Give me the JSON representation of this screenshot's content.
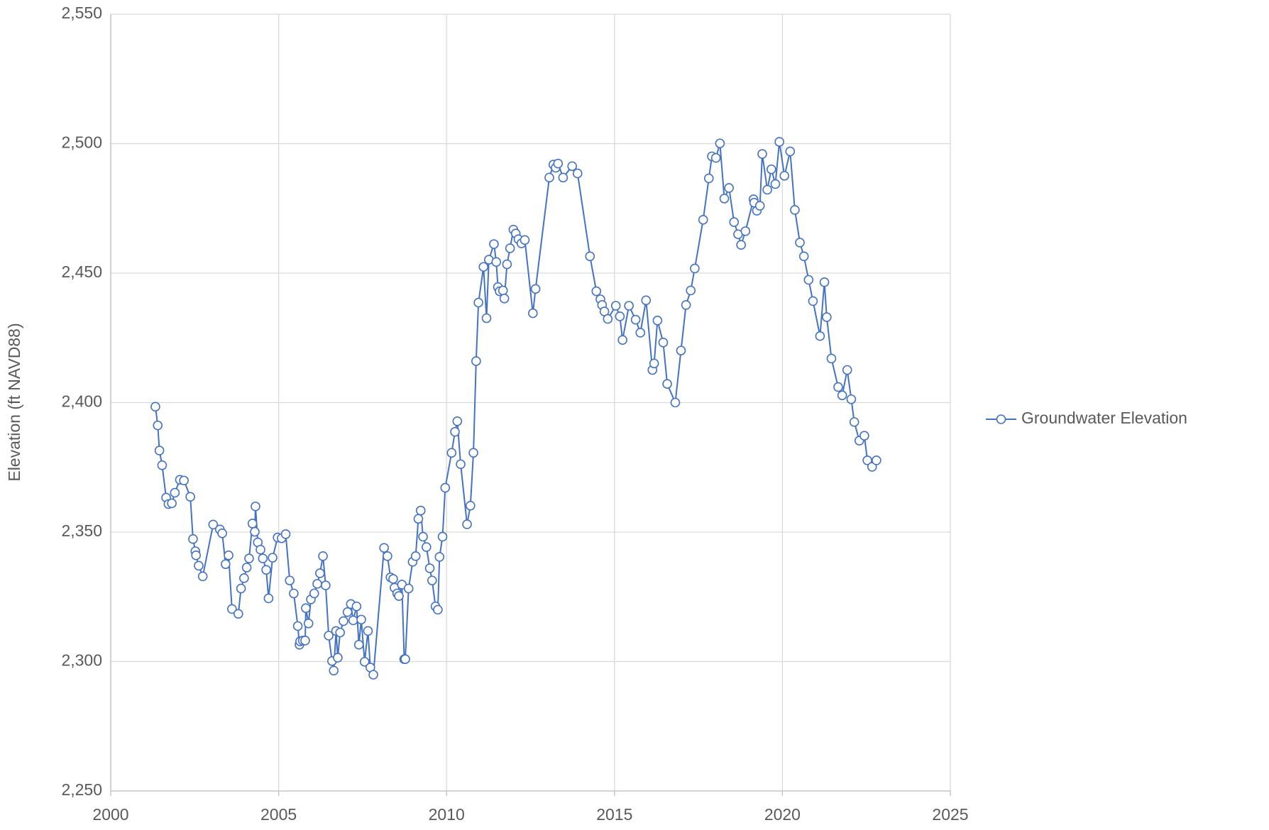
{
  "chart_data": {
    "type": "line",
    "y_label": "Elevation (ft NAVD88)",
    "x": [
      2001.33,
      2001.4,
      2001.45,
      2001.53,
      2001.65,
      2001.72,
      2001.82,
      2001.91,
      2002.06,
      2002.18,
      2002.37,
      2002.45,
      2002.52,
      2002.54,
      2002.62,
      2002.74,
      2003.05,
      2003.25,
      2003.32,
      2003.42,
      2003.51,
      2003.61,
      2003.8,
      2003.88,
      2003.97,
      2004.05,
      2004.12,
      2004.22,
      2004.29,
      2004.31,
      2004.38,
      2004.46,
      2004.53,
      2004.63,
      2004.7,
      2004.82,
      2004.97,
      2005.09,
      2005.21,
      2005.33,
      2005.45,
      2005.57,
      2005.62,
      2005.64,
      2005.72,
      2005.79,
      2005.81,
      2005.89,
      2005.96,
      2006.06,
      2006.15,
      2006.23,
      2006.32,
      2006.4,
      2006.49,
      2006.59,
      2006.64,
      2006.71,
      2006.76,
      2006.83,
      2006.93,
      2007.05,
      2007.15,
      2007.22,
      2007.32,
      2007.39,
      2007.46,
      2007.56,
      2007.66,
      2007.73,
      2007.82,
      2008.14,
      2008.24,
      2008.33,
      2008.41,
      2008.45,
      2008.53,
      2008.58,
      2008.67,
      2008.74,
      2008.77,
      2008.87,
      2008.99,
      2009.08,
      2009.16,
      2009.23,
      2009.3,
      2009.4,
      2009.5,
      2009.57,
      2009.67,
      2009.74,
      2009.79,
      2009.88,
      2009.96,
      2010.15,
      2010.25,
      2010.32,
      2010.42,
      2010.61,
      2010.71,
      2010.8,
      2010.88,
      2010.95,
      2011.1,
      2011.19,
      2011.26,
      2011.41,
      2011.48,
      2011.53,
      2011.58,
      2011.68,
      2011.72,
      2011.8,
      2011.89,
      2011.99,
      2012.06,
      2012.14,
      2012.23,
      2012.33,
      2012.57,
      2012.65,
      2013.06,
      2013.18,
      2013.25,
      2013.32,
      2013.47,
      2013.74,
      2013.9,
      2014.27,
      2014.46,
      2014.58,
      2014.63,
      2014.7,
      2014.8,
      2015.04,
      2015.16,
      2015.24,
      2015.43,
      2015.63,
      2015.77,
      2015.94,
      2016.13,
      2016.18,
      2016.28,
      2016.45,
      2016.57,
      2016.81,
      2016.98,
      2017.13,
      2017.27,
      2017.39,
      2017.64,
      2017.81,
      2017.9,
      2018.02,
      2018.14,
      2018.27,
      2018.41,
      2018.56,
      2018.68,
      2018.77,
      2018.9,
      2019.14,
      2019.16,
      2019.24,
      2019.33,
      2019.4,
      2019.55,
      2019.67,
      2019.79,
      2019.91,
      2020.06,
      2020.23,
      2020.37,
      2020.52,
      2020.64,
      2020.78,
      2020.91,
      2021.12,
      2021.25,
      2021.32,
      2021.46,
      2021.66,
      2021.78,
      2021.93,
      2022.05,
      2022.14,
      2022.29,
      2022.44,
      2022.53,
      2022.67,
      2022.8
    ],
    "series": [
      {
        "name": "Groundwater Elevation",
        "color": "#4472c4",
        "values": [
          2398.4,
          2391.2,
          2381.5,
          2375.8,
          2363.3,
          2360.8,
          2361.1,
          2365.2,
          2370.2,
          2369.9,
          2363.6,
          2347.3,
          2342.6,
          2341,
          2337,
          2332.9,
          2352.9,
          2351,
          2349.5,
          2337.6,
          2341,
          2320.3,
          2318.4,
          2328.2,
          2332.2,
          2336.3,
          2339.8,
          2353.3,
          2350.1,
          2359.9,
          2346,
          2343.2,
          2339.8,
          2335.4,
          2324.4,
          2340.1,
          2347.9,
          2347.6,
          2349.2,
          2331.3,
          2326.3,
          2313.7,
          2306.5,
          2307.8,
          2308.1,
          2308.1,
          2320.6,
          2314.7,
          2324,
          2326.3,
          2330,
          2334.1,
          2340.7,
          2329.4,
          2310,
          2300.2,
          2296.5,
          2311.8,
          2301.5,
          2311.2,
          2315.6,
          2319.1,
          2322.2,
          2315.9,
          2321.3,
          2306.5,
          2316.2,
          2299.9,
          2311.8,
          2297.7,
          2294.9,
          2343.9,
          2340.7,
          2332.5,
          2331.9,
          2328.5,
          2326.3,
          2325.3,
          2329.7,
          2300.9,
          2300.9,
          2328.2,
          2338.5,
          2340.7,
          2355.1,
          2358.3,
          2348.2,
          2344.2,
          2336,
          2331.3,
          2321.3,
          2320,
          2340.4,
          2348.2,
          2367.1,
          2380.6,
          2388.7,
          2392.8,
          2376.2,
          2353,
          2360.2,
          2380.6,
          2416,
          2438.6,
          2452.4,
          2432.6,
          2455.2,
          2461.2,
          2454.3,
          2444.6,
          2443,
          2443.3,
          2440.2,
          2453.4,
          2459.6,
          2466.8,
          2465.3,
          2463.1,
          2461.5,
          2462.8,
          2434.5,
          2443.9,
          2486.9,
          2491.9,
          2490.7,
          2492.3,
          2486.9,
          2491.3,
          2488.5,
          2456.5,
          2443,
          2439.9,
          2437.7,
          2435.2,
          2432.3,
          2437.4,
          2433.3,
          2424.2,
          2437.4,
          2432,
          2427,
          2439.5,
          2412.6,
          2415.1,
          2431.7,
          2423.2,
          2407.2,
          2400,
          2420.1,
          2437.7,
          2443.3,
          2451.8,
          2470.6,
          2486.6,
          2495.1,
          2494.5,
          2500.1,
          2478.8,
          2482.9,
          2469.7,
          2465,
          2460.9,
          2466.2,
          2478.5,
          2477.2,
          2474.1,
          2476,
          2496,
          2482.2,
          2490.1,
          2484.4,
          2500.7,
          2487.6,
          2497,
          2474.4,
          2461.8,
          2456.5,
          2447.4,
          2439.2,
          2425.7,
          2446.5,
          2433,
          2417,
          2406,
          2402.8,
          2412.6,
          2401.3,
          2392.5,
          2385.3,
          2387.2,
          2377.7,
          2375.2,
          2377.7
        ]
      }
    ],
    "xlim": [
      2000,
      2025
    ],
    "xticks": [
      2000,
      2005,
      2010,
      2015,
      2020,
      2025
    ],
    "ylim": [
      2250,
      2550
    ],
    "yticks": [
      {
        "value": 2250,
        "label": "2,250"
      },
      {
        "value": 2300,
        "label": "2,300"
      },
      {
        "value": 2350,
        "label": "2,350"
      },
      {
        "value": 2400,
        "label": "2,400"
      },
      {
        "value": 2450,
        "label": "2,450"
      },
      {
        "value": 2500,
        "label": "2,500"
      },
      {
        "value": 2550,
        "label": "2,550"
      }
    ],
    "grid": true,
    "legend": "right"
  }
}
